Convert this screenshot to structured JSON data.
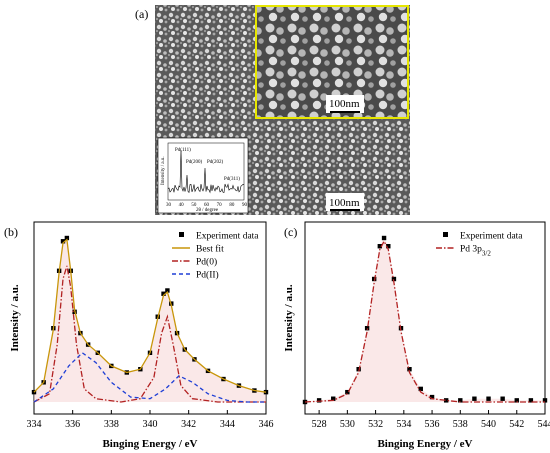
{
  "panel_a": {
    "letter": "(a)",
    "scale_bar_main": "100nm",
    "scale_bar_zoom": "100nm",
    "inset": {
      "ylabel": "Intensity / a.u.",
      "xlabel": "2θ / degree",
      "peaks": [
        "Pd(111)",
        "Pd(200)",
        "Pd(202)",
        "Pd(311)"
      ],
      "ticks": [
        "30",
        "40",
        "50",
        "60",
        "70",
        "80",
        "90"
      ]
    },
    "colors": {
      "zoom_border": "#e6e600"
    }
  },
  "chart_data": [
    {
      "panel": "(b)",
      "type": "line",
      "xlabel": "Binging Energy / eV",
      "ylabel": "Intensity / a.u.",
      "xlim": [
        334,
        346
      ],
      "xticks": [
        "334",
        "336",
        "338",
        "340",
        "342",
        "344",
        "346"
      ],
      "legend": [
        "Experiment data",
        "Best fit",
        "Pd(0)",
        "Pd(II)"
      ],
      "legend_position": "top-right",
      "series": [
        {
          "name": "Experiment data",
          "style": "square-markers",
          "color": "#000000",
          "x": [
            334.0,
            334.5,
            335.0,
            335.3,
            335.5,
            335.7,
            335.9,
            336.1,
            336.4,
            336.8,
            337.3,
            338.0,
            338.8,
            339.5,
            340.0,
            340.4,
            340.7,
            340.9,
            341.1,
            341.4,
            341.8,
            342.3,
            343.0,
            343.8,
            344.6,
            345.4,
            346.0
          ],
          "y": [
            0.06,
            0.12,
            0.45,
            0.8,
            0.98,
            1.0,
            0.8,
            0.55,
            0.42,
            0.35,
            0.3,
            0.22,
            0.18,
            0.2,
            0.3,
            0.52,
            0.66,
            0.68,
            0.6,
            0.42,
            0.32,
            0.26,
            0.19,
            0.14,
            0.1,
            0.07,
            0.06
          ]
        },
        {
          "name": "Best fit",
          "style": "solid",
          "color": "#c8960a",
          "x": [
            334.0,
            334.5,
            335.0,
            335.3,
            335.5,
            335.7,
            335.9,
            336.1,
            336.4,
            336.8,
            337.3,
            338.0,
            338.8,
            339.5,
            340.0,
            340.4,
            340.7,
            340.9,
            341.1,
            341.4,
            341.8,
            342.3,
            343.0,
            343.8,
            344.6,
            345.4,
            346.0
          ],
          "y": [
            0.06,
            0.12,
            0.44,
            0.79,
            0.97,
            0.99,
            0.8,
            0.56,
            0.42,
            0.35,
            0.3,
            0.22,
            0.18,
            0.2,
            0.3,
            0.51,
            0.65,
            0.67,
            0.59,
            0.42,
            0.32,
            0.26,
            0.19,
            0.14,
            0.1,
            0.07,
            0.06
          ]
        },
        {
          "name": "Pd(0)",
          "style": "dash-dot",
          "color": "#b22222",
          "x": [
            334.0,
            334.8,
            335.2,
            335.5,
            335.7,
            335.9,
            336.2,
            336.6,
            337.2,
            338.5,
            339.5,
            340.2,
            340.6,
            340.9,
            341.2,
            341.6,
            342.2,
            343.5,
            346.0
          ],
          "y": [
            0.0,
            0.05,
            0.35,
            0.75,
            0.83,
            0.7,
            0.35,
            0.08,
            0.02,
            0.0,
            0.02,
            0.15,
            0.42,
            0.52,
            0.35,
            0.1,
            0.02,
            0.0,
            0.0
          ]
        },
        {
          "name": "Pd(II)",
          "style": "dashed",
          "color": "#1f3fd6",
          "x": [
            334.0,
            335.0,
            335.8,
            336.5,
            337.2,
            338.0,
            339.0,
            340.0,
            340.8,
            341.5,
            342.2,
            343.0,
            344.0,
            345.0,
            346.0
          ],
          "y": [
            0.0,
            0.08,
            0.22,
            0.3,
            0.24,
            0.12,
            0.03,
            0.02,
            0.08,
            0.16,
            0.12,
            0.05,
            0.01,
            0.0,
            0.0
          ]
        }
      ]
    },
    {
      "panel": "(c)",
      "type": "line",
      "xlabel": "Binging Energy / eV",
      "ylabel": "Intensity / a.u.",
      "xlim": [
        527,
        544
      ],
      "xticks": [
        "528",
        "530",
        "532",
        "534",
        "536",
        "538",
        "540",
        "542",
        "544"
      ],
      "legend": [
        "Experiment data",
        "Pd 3p3/2"
      ],
      "legend_position": "top-right",
      "series": [
        {
          "name": "Experiment data",
          "style": "square-markers",
          "color": "#000000",
          "x": [
            527.0,
            528.0,
            529.0,
            530.0,
            530.8,
            531.4,
            531.9,
            532.3,
            532.6,
            532.9,
            533.3,
            533.8,
            534.4,
            535.2,
            536.0,
            537.0,
            538.0,
            539.0,
            540.0,
            541.0,
            542.0,
            543.0,
            544.0
          ],
          "y": [
            0.0,
            0.01,
            0.02,
            0.06,
            0.2,
            0.45,
            0.75,
            0.95,
            1.0,
            0.95,
            0.75,
            0.45,
            0.2,
            0.08,
            0.03,
            0.01,
            0.01,
            0.02,
            0.02,
            0.02,
            0.01,
            0.01,
            0.01
          ]
        },
        {
          "name": "Pd 3p3/2",
          "style": "dash-dot",
          "color": "#b22222",
          "x": [
            527.0,
            529.0,
            530.0,
            530.8,
            531.4,
            531.9,
            532.3,
            532.6,
            532.9,
            533.3,
            533.8,
            534.4,
            535.2,
            536.0,
            538.0,
            544.0
          ],
          "y": [
            0.0,
            0.01,
            0.05,
            0.18,
            0.43,
            0.73,
            0.93,
            0.98,
            0.93,
            0.73,
            0.43,
            0.18,
            0.06,
            0.02,
            0.0,
            0.0
          ]
        }
      ]
    }
  ]
}
